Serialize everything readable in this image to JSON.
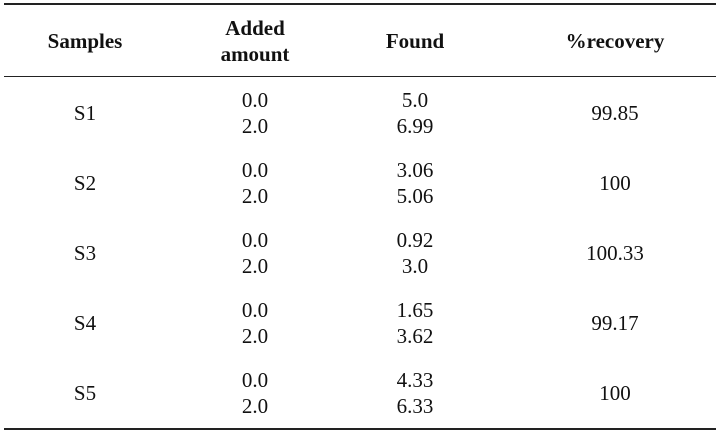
{
  "table": {
    "header": [
      "Samples",
      "Added amount",
      "Found",
      "%recovery"
    ],
    "rows": [
      {
        "sample": "S1",
        "added": [
          "0.0",
          "2.0"
        ],
        "found": [
          "5.0",
          "6.99"
        ],
        "recovery": "99.85"
      },
      {
        "sample": "S2",
        "added": [
          "0.0",
          "2.0"
        ],
        "found": [
          "3.06",
          "5.06"
        ],
        "recovery": "100"
      },
      {
        "sample": "S3",
        "added": [
          "0.0",
          "2.0"
        ],
        "found": [
          "0.92",
          "3.0"
        ],
        "recovery": "100.33"
      },
      {
        "sample": "S4",
        "added": [
          "0.0",
          "2.0"
        ],
        "found": [
          "1.65",
          "3.62"
        ],
        "recovery": "99.17"
      },
      {
        "sample": "S5",
        "added": [
          "0.0",
          "2.0"
        ],
        "found": [
          "4.33",
          "6.33"
        ],
        "recovery": "100"
      }
    ]
  }
}
